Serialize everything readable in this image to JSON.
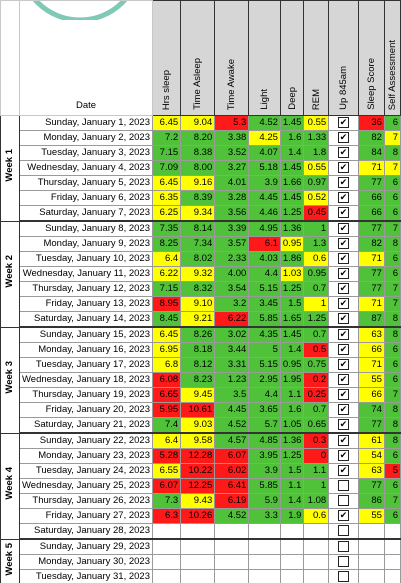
{
  "header": {
    "date": "Date",
    "columns": [
      "Hrs sleep",
      "Time Asleep",
      "Time Awake",
      "Light",
      "Deep",
      "REM",
      "Up 845am",
      "Sleep Score",
      "Self Assessment"
    ]
  },
  "palette": {
    "G": "#4fc23a",
    "Y": "#ffff00",
    "R": "#ff1a1a"
  },
  "weeks": [
    {
      "label": "Week 1",
      "rows": [
        {
          "date": "Sunday, January 1, 2023",
          "values": [
            "6.45",
            "9.04",
            "5.3",
            "4.52",
            "1.45",
            "0.55",
            "36",
            "6"
          ],
          "fill": "YYRGGYRG",
          "up": true
        },
        {
          "date": "Monday, January 2, 2023",
          "values": [
            "7.2",
            "8.20",
            "3.38",
            "4.25",
            "1.6",
            "1.33",
            "82",
            "7"
          ],
          "fill": "GGGYGGGY",
          "up": true
        },
        {
          "date": "Tuesday, January 3, 2023",
          "values": [
            "7.15",
            "8.38",
            "3.52",
            "4.07",
            "1.4",
            "1.8",
            "84",
            "8"
          ],
          "fill": "GGGGGGGG",
          "up": true
        },
        {
          "date": "Wednesday, January 4, 2023",
          "values": [
            "7.09",
            "8.00",
            "3.27",
            "5.18",
            "1.45",
            "0.55",
            "71",
            "7"
          ],
          "fill": "GGGGGYYY",
          "up": true
        },
        {
          "date": "Thursday, January 5, 2023",
          "values": [
            "6.45",
            "9.16",
            "4.01",
            "3.9",
            "1.66",
            "0.97",
            "77",
            "6"
          ],
          "fill": "YYGGGGGG",
          "up": true
        },
        {
          "date": "Friday, January 6, 2023",
          "values": [
            "6.35",
            "8.39",
            "3.28",
            "4.45",
            "1.45",
            "0.52",
            "66",
            "6"
          ],
          "fill": "YGGGGYGG",
          "up": true
        },
        {
          "date": "Saturday, January 7, 2023",
          "values": [
            "6.25",
            "9.34",
            "3.56",
            "4.46",
            "1.25",
            "0.45",
            "66",
            "6"
          ],
          "fill": "YYGGGRGG",
          "up": true
        }
      ]
    },
    {
      "label": "Week 2",
      "rows": [
        {
          "date": "Sunday, January 8, 2023",
          "values": [
            "7.35",
            "8.14",
            "3.39",
            "4.95",
            "1.36",
            "1",
            "77",
            "7"
          ],
          "fill": "GGGGGGGG",
          "up": true
        },
        {
          "date": "Monday, January 9, 2023",
          "values": [
            "8.25",
            "7.34",
            "3.57",
            "6.1",
            "0.95",
            "1.3",
            "82",
            "8"
          ],
          "fill": "GGGRYGGG",
          "up": true
        },
        {
          "date": "Tuesday, January 10, 2023",
          "values": [
            "6.4",
            "8.02",
            "2.33",
            "4.03",
            "1.86",
            "0.6",
            "71",
            "6"
          ],
          "fill": "YGGGGYYG",
          "up": true
        },
        {
          "date": "Wednesday, January 11, 2023",
          "values": [
            "6.22",
            "9.32",
            "4.00",
            "4.4",
            "1.03",
            "0.95",
            "77",
            "6"
          ],
          "fill": "YYGGYGGG",
          "up": true
        },
        {
          "date": "Thursday, January 12, 2023",
          "values": [
            "7.15",
            "8.32",
            "3.54",
            "5.15",
            "1.25",
            "0.7",
            "77",
            "7"
          ],
          "fill": "GGGGGGGG",
          "up": true
        },
        {
          "date": "Friday, January 13, 2023",
          "values": [
            "8.95",
            "9.10",
            "3.2",
            "3.45",
            "1.5",
            "1",
            "71",
            "7"
          ],
          "fill": "RYGGGYYG",
          "up": true
        },
        {
          "date": "Saturday, January 14, 2023",
          "values": [
            "8.45",
            "9.21",
            "6.22",
            "5.85",
            "1.65",
            "1.25",
            "87",
            "8"
          ],
          "fill": "GYRGGGGG",
          "up": true
        }
      ]
    },
    {
      "label": "Week 3",
      "rows": [
        {
          "date": "Sunday, January 15, 2023",
          "values": [
            "6.45",
            "8.26",
            "3.02",
            "4.35",
            "1.45",
            "0.7",
            "63",
            "8"
          ],
          "fill": "YGGGGGYG",
          "up": true
        },
        {
          "date": "Monday, January 16, 2023",
          "values": [
            "6.95",
            "8.18",
            "3.44",
            "5",
            "1.4",
            "0.5",
            "66",
            "6"
          ],
          "fill": "YGGGGRYG",
          "up": true
        },
        {
          "date": "Tuesday, January 17, 2023",
          "values": [
            "6.8",
            "8.12",
            "3.31",
            "5.15",
            "0.95",
            "0.75",
            "71",
            "6"
          ],
          "fill": "YGGGGGYG",
          "up": true
        },
        {
          "date": "Wednesday, January 18, 2023",
          "values": [
            "6.08",
            "8.23",
            "1.23",
            "2.95",
            "1.95",
            "0.2",
            "55",
            "6"
          ],
          "fill": "RGGGGRYG",
          "up": true
        },
        {
          "date": "Thursday, January 19, 2023",
          "values": [
            "6.65",
            "9.45",
            "3.5",
            "4.4",
            "1.1",
            "0.25",
            "66",
            "7"
          ],
          "fill": "RYGGGRYG",
          "up": true
        },
        {
          "date": "Friday, January 20, 2023",
          "values": [
            "5.95",
            "10.61",
            "4.45",
            "3.65",
            "1.6",
            "0.7",
            "74",
            "8"
          ],
          "fill": "RRGGGGGG",
          "up": true
        },
        {
          "date": "Saturday, January 21, 2023",
          "values": [
            "7.4",
            "9.03",
            "4.52",
            "5.7",
            "1.05",
            "0.65",
            "77",
            "8"
          ],
          "fill": "GYGGGGGG",
          "up": true
        }
      ]
    },
    {
      "label": "Week 4",
      "rows": [
        {
          "date": "Sunday, January 22, 2023",
          "values": [
            "6.4",
            "9.58",
            "4.57",
            "4.85",
            "1.36",
            "0.3",
            "61",
            "8"
          ],
          "fill": "YYGGGRYG",
          "up": true
        },
        {
          "date": "Monday, January 23, 2023",
          "values": [
            "5.28",
            "12.28",
            "6.07",
            "3.95",
            "1.25",
            "0",
            "54",
            "6"
          ],
          "fill": "RRRGGRYG",
          "up": true
        },
        {
          "date": "Tuesday, January 24, 2023",
          "values": [
            "6.55",
            "10.22",
            "6.02",
            "3.9",
            "1.5",
            "1.1",
            "63",
            "5"
          ],
          "fill": "YRRGGGYR",
          "up": true
        },
        {
          "date": "Wednesday, January 25, 2023",
          "values": [
            "6.07",
            "12.25",
            "6.41",
            "5.85",
            "1.1",
            "1",
            "77",
            "6"
          ],
          "fill": "RRRGGGGG",
          "up": false
        },
        {
          "date": "Thursday, January 26, 2023",
          "values": [
            "7.3",
            "9.43",
            "6.19",
            "5.9",
            "1.4",
            "1.08",
            "86",
            "7"
          ],
          "fill": "GYRGGGGG",
          "up": false
        },
        {
          "date": "Friday, January 27, 2023",
          "values": [
            "6.3",
            "10.26",
            "4.52",
            "3.3",
            "1.9",
            "0.6",
            "55",
            "6"
          ],
          "fill": "RRGGGYYG",
          "up": true
        },
        {
          "date": "Saturday, January 28, 2023",
          "values": [],
          "fill": "",
          "up": false
        }
      ]
    },
    {
      "label": "Week 5",
      "rows": [
        {
          "date": "Sunday, January 29, 2023",
          "values": [],
          "fill": "",
          "up": false
        },
        {
          "date": "Monday, January 30, 2023",
          "values": [],
          "fill": "",
          "up": false
        },
        {
          "date": "Tuesday, January 31, 2023",
          "values": [],
          "fill": "",
          "up": false
        }
      ]
    }
  ]
}
